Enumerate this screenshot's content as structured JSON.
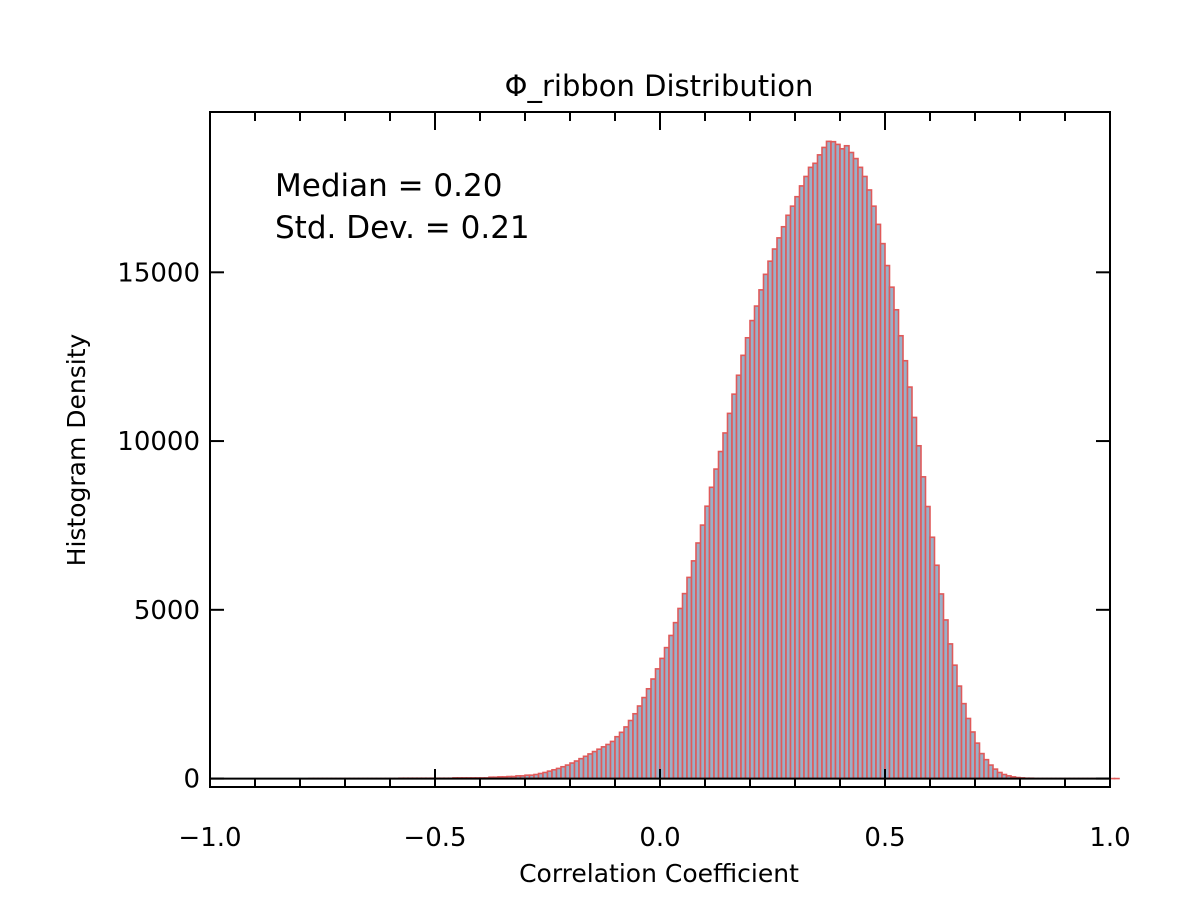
{
  "chart_data": {
    "type": "bar",
    "title": "Φ_ribbon Distribution",
    "xlabel": "Correlation Coefficient",
    "ylabel": "Histogram Density",
    "xlim": [
      -1.0,
      1.0
    ],
    "ylim": [
      -250,
      19750
    ],
    "x_ticks": [
      -1.0,
      -0.5,
      0.0,
      0.5,
      1.0
    ],
    "x_tick_labels": [
      "−1.0",
      "−0.5",
      "0.0",
      "0.5",
      "1.0"
    ],
    "x_minor_step": 0.1,
    "y_ticks": [
      0,
      5000,
      10000,
      15000
    ],
    "y_tick_labels": [
      "0",
      "5000",
      "10000",
      "15000"
    ],
    "annotations": [
      "Median = 0.20",
      "Std. Dev. = 0.21"
    ],
    "grid": false,
    "bin_width": 0.01,
    "bin_start": -0.78,
    "values": [
      0,
      0,
      0,
      0,
      0,
      0,
      0,
      0,
      0,
      0,
      0,
      0,
      0,
      0,
      0,
      0,
      0,
      0,
      0,
      0,
      10,
      10,
      10,
      10,
      10,
      10,
      10,
      10,
      10,
      10,
      10,
      10,
      20,
      20,
      20,
      20,
      20,
      20,
      20,
      20,
      40,
      40,
      50,
      50,
      60,
      60,
      80,
      80,
      100,
      100,
      120,
      150,
      180,
      220,
      260,
      300,
      350,
      400,
      460,
      520,
      590,
      660,
      730,
      800,
      870,
      940,
      1010,
      1100,
      1240,
      1370,
      1530,
      1720,
      1920,
      2150,
      2400,
      2660,
      2950,
      3250,
      3560,
      3880,
      4240,
      4620,
      5040,
      5480,
      5960,
      6450,
      6980,
      7510,
      8070,
      8630,
      9170,
      9690,
      10240,
      10820,
      11390,
      11950,
      12540,
      13060,
      13570,
      14000,
      14480,
      14940,
      15330,
      15690,
      16020,
      16350,
      16690,
      16960,
      17240,
      17560,
      17840,
      18110,
      18230,
      18480,
      18700,
      18880,
      18870,
      18790,
      18660,
      18750,
      18550,
      18370,
      18110,
      17840,
      17440,
      16960,
      16420,
      15850,
      15200,
      14560,
      13890,
      13120,
      12380,
      11600,
      10700,
      9860,
      8940,
      8060,
      7150,
      6320,
      5470,
      4700,
      3990,
      3360,
      2740,
      2220,
      1780,
      1380,
      1050,
      740,
      560,
      400,
      280,
      180,
      120,
      80,
      50,
      30,
      20,
      10,
      10,
      0,
      0,
      0,
      0,
      0,
      0,
      0,
      0,
      0,
      0,
      0,
      0,
      0,
      0,
      0,
      0,
      0,
      0,
      0
    ]
  },
  "colors": {
    "bar_fill": "#9ab0c8",
    "bar_edge": "#e05a5a",
    "axis": "#000000",
    "background": "#ffffff"
  }
}
